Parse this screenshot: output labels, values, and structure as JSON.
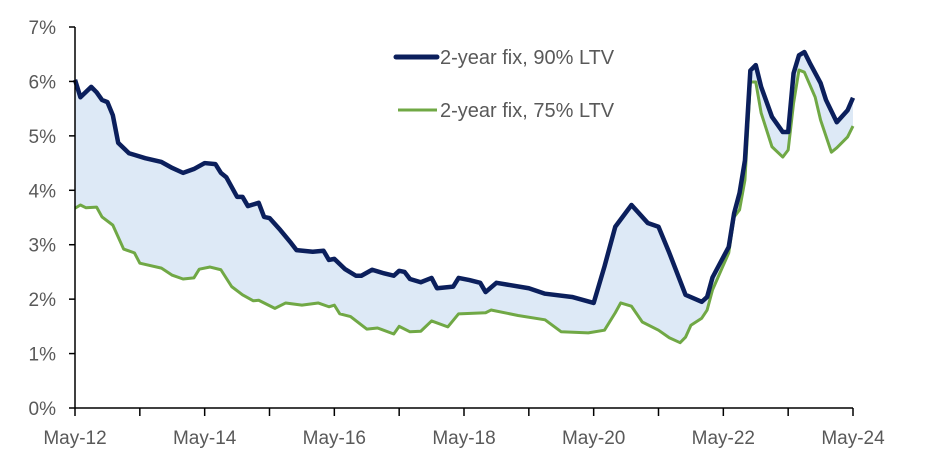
{
  "chart_data": {
    "type": "line",
    "title": "",
    "xlabel": "",
    "ylabel": "",
    "ylim": [
      0,
      7
    ],
    "y_ticks": [
      "0%",
      "1%",
      "2%",
      "3%",
      "4%",
      "5%",
      "6%",
      "7%"
    ],
    "x_range": [
      "2012-05",
      "2024-05"
    ],
    "x_tick_labels": [
      "May-12",
      "May-14",
      "May-16",
      "May-18",
      "May-20",
      "May-22",
      "May-24"
    ],
    "grid": false,
    "legend_placement": "top-center",
    "shaded_area_between_series": true,
    "colors": {
      "series_90": "#0b1f5c",
      "series_75": "#70a845",
      "fill": "#dde9f6",
      "axis": "#000000"
    },
    "series": [
      {
        "name": "2-year fix, 90% LTV",
        "points": [
          [
            "2012-05",
            6.03
          ],
          [
            "2012-06",
            5.71
          ],
          [
            "2012-08",
            5.9
          ],
          [
            "2012-09",
            5.8
          ],
          [
            "2012-10",
            5.66
          ],
          [
            "2012-11",
            5.62
          ],
          [
            "2012-12",
            5.38
          ],
          [
            "2013-01",
            4.87
          ],
          [
            "2013-03",
            4.68
          ],
          [
            "2013-04",
            4.65
          ],
          [
            "2013-06",
            4.59
          ],
          [
            "2013-09",
            4.52
          ],
          [
            "2013-11",
            4.41
          ],
          [
            "2014-01",
            4.32
          ],
          [
            "2014-03",
            4.39
          ],
          [
            "2014-05",
            4.5
          ],
          [
            "2014-07",
            4.48
          ],
          [
            "2014-08",
            4.32
          ],
          [
            "2014-09",
            4.24
          ],
          [
            "2014-11",
            3.88
          ],
          [
            "2014-12",
            3.88
          ],
          [
            "2015-01",
            3.71
          ],
          [
            "2015-03",
            3.77
          ],
          [
            "2015-04",
            3.51
          ],
          [
            "2015-05",
            3.49
          ],
          [
            "2015-07",
            3.27
          ],
          [
            "2015-09",
            3.03
          ],
          [
            "2015-10",
            2.9
          ],
          [
            "2016-01",
            2.87
          ],
          [
            "2016-03",
            2.89
          ],
          [
            "2016-04",
            2.72
          ],
          [
            "2016-05",
            2.74
          ],
          [
            "2016-07",
            2.55
          ],
          [
            "2016-09",
            2.43
          ],
          [
            "2016-10",
            2.43
          ],
          [
            "2016-12",
            2.54
          ],
          [
            "2017-02",
            2.48
          ],
          [
            "2017-04",
            2.43
          ],
          [
            "2017-05",
            2.52
          ],
          [
            "2017-06",
            2.5
          ],
          [
            "2017-07",
            2.37
          ],
          [
            "2017-09",
            2.31
          ],
          [
            "2017-11",
            2.39
          ],
          [
            "2017-12",
            2.2
          ],
          [
            "2018-03",
            2.23
          ],
          [
            "2018-04",
            2.39
          ],
          [
            "2018-06",
            2.35
          ],
          [
            "2018-08",
            2.3
          ],
          [
            "2018-09",
            2.13
          ],
          [
            "2018-11",
            2.3
          ],
          [
            "2019-05",
            2.2
          ],
          [
            "2019-08",
            2.1
          ],
          [
            "2020-01",
            2.04
          ],
          [
            "2020-05",
            1.93
          ],
          [
            "2020-07",
            2.6
          ],
          [
            "2020-09",
            3.33
          ],
          [
            "2020-12",
            3.73
          ],
          [
            "2021-03",
            3.4
          ],
          [
            "2021-05",
            3.33
          ],
          [
            "2021-07",
            2.85
          ],
          [
            "2021-10",
            2.08
          ],
          [
            "2022-01",
            1.95
          ],
          [
            "2022-02",
            2.04
          ],
          [
            "2022-03",
            2.4
          ],
          [
            "2022-06",
            2.96
          ],
          [
            "2022-07",
            3.58
          ],
          [
            "2022-08",
            3.95
          ],
          [
            "2022-09",
            4.55
          ],
          [
            "2022-10",
            6.2
          ],
          [
            "2022-11",
            6.3
          ],
          [
            "2022-12",
            5.9
          ],
          [
            "2023-02",
            5.35
          ],
          [
            "2023-04",
            5.07
          ],
          [
            "2023-05",
            5.07
          ],
          [
            "2023-06",
            6.15
          ],
          [
            "2023-07",
            6.48
          ],
          [
            "2023-08",
            6.54
          ],
          [
            "2023-09",
            6.34
          ],
          [
            "2023-11",
            5.97
          ],
          [
            "2023-12",
            5.66
          ],
          [
            "2024-02",
            5.25
          ],
          [
            "2024-04",
            5.47
          ],
          [
            "2024-05",
            5.7
          ]
        ]
      },
      {
        "name": "2-year fix, 75% LTV",
        "points": [
          [
            "2012-05",
            3.67
          ],
          [
            "2012-06",
            3.73
          ],
          [
            "2012-07",
            3.68
          ],
          [
            "2012-09",
            3.69
          ],
          [
            "2012-10",
            3.51
          ],
          [
            "2012-12",
            3.36
          ],
          [
            "2013-02",
            2.92
          ],
          [
            "2013-04",
            2.85
          ],
          [
            "2013-05",
            2.66
          ],
          [
            "2013-09",
            2.57
          ],
          [
            "2013-11",
            2.44
          ],
          [
            "2014-01",
            2.37
          ],
          [
            "2014-03",
            2.39
          ],
          [
            "2014-04",
            2.55
          ],
          [
            "2014-06",
            2.59
          ],
          [
            "2014-08",
            2.54
          ],
          [
            "2014-10",
            2.23
          ],
          [
            "2014-12",
            2.08
          ],
          [
            "2015-02",
            1.97
          ],
          [
            "2015-03",
            1.98
          ],
          [
            "2015-06",
            1.83
          ],
          [
            "2015-08",
            1.93
          ],
          [
            "2015-11",
            1.89
          ],
          [
            "2016-02",
            1.93
          ],
          [
            "2016-04",
            1.86
          ],
          [
            "2016-05",
            1.89
          ],
          [
            "2016-06",
            1.73
          ],
          [
            "2016-08",
            1.68
          ],
          [
            "2016-11",
            1.45
          ],
          [
            "2017-01",
            1.47
          ],
          [
            "2017-04",
            1.36
          ],
          [
            "2017-05",
            1.5
          ],
          [
            "2017-07",
            1.4
          ],
          [
            "2017-09",
            1.41
          ],
          [
            "2017-11",
            1.6
          ],
          [
            "2018-02",
            1.49
          ],
          [
            "2018-04",
            1.73
          ],
          [
            "2018-09",
            1.75
          ],
          [
            "2018-10",
            1.8
          ],
          [
            "2019-03",
            1.7
          ],
          [
            "2019-08",
            1.62
          ],
          [
            "2019-11",
            1.4
          ],
          [
            "2020-04",
            1.38
          ],
          [
            "2020-07",
            1.43
          ],
          [
            "2020-09",
            1.75
          ],
          [
            "2020-10",
            1.93
          ],
          [
            "2020-12",
            1.87
          ],
          [
            "2021-02",
            1.58
          ],
          [
            "2021-05",
            1.43
          ],
          [
            "2021-07",
            1.29
          ],
          [
            "2021-09",
            1.2
          ],
          [
            "2021-10",
            1.3
          ],
          [
            "2021-11",
            1.52
          ],
          [
            "2022-01",
            1.65
          ],
          [
            "2022-02",
            1.8
          ],
          [
            "2022-03",
            2.17
          ],
          [
            "2022-06",
            2.85
          ],
          [
            "2022-07",
            3.51
          ],
          [
            "2022-08",
            3.64
          ],
          [
            "2022-09",
            4.19
          ],
          [
            "2022-10",
            5.99
          ],
          [
            "2022-11",
            5.99
          ],
          [
            "2022-12",
            5.42
          ],
          [
            "2023-02",
            4.8
          ],
          [
            "2023-04",
            4.61
          ],
          [
            "2023-05",
            4.74
          ],
          [
            "2023-06",
            5.6
          ],
          [
            "2023-07",
            6.21
          ],
          [
            "2023-08",
            6.17
          ],
          [
            "2023-10",
            5.71
          ],
          [
            "2023-11",
            5.29
          ],
          [
            "2024-01",
            4.7
          ],
          [
            "2024-02",
            4.78
          ],
          [
            "2024-04",
            4.98
          ],
          [
            "2024-05",
            5.18
          ]
        ]
      }
    ]
  }
}
